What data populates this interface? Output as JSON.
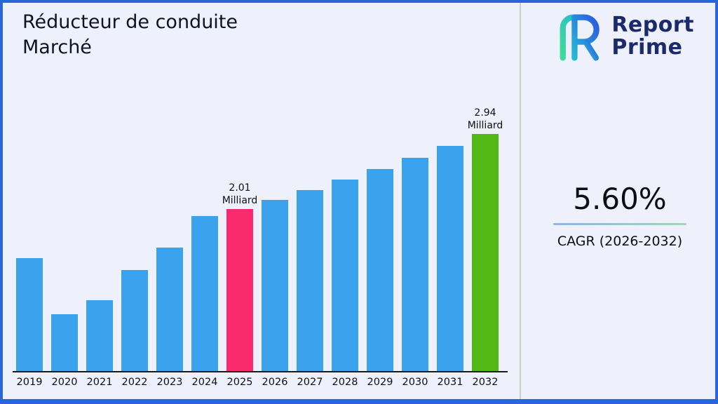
{
  "title": "Réducteur de conduite Marché",
  "logo": {
    "line1": "Report",
    "line2": "Prime"
  },
  "cagr": {
    "value": "5.60%",
    "label": "CAGR (2026-2032)"
  },
  "chart_data": {
    "type": "bar",
    "title": "Réducteur de conduite Marché",
    "categories": [
      "2019",
      "2020",
      "2021",
      "2022",
      "2023",
      "2024",
      "2025",
      "2026",
      "2027",
      "2028",
      "2029",
      "2030",
      "2031",
      "2032"
    ],
    "values": [
      1.4,
      0.7,
      0.88,
      1.25,
      1.53,
      1.92,
      2.01,
      2.12,
      2.24,
      2.37,
      2.5,
      2.64,
      2.79,
      2.94
    ],
    "unit": "Milliard",
    "xlabel": "",
    "ylabel": "",
    "ylim": [
      0,
      3.1
    ],
    "grid": false,
    "legend": "none",
    "colors": {
      "default": "#3BA3EE",
      "2025": "#FA2A6E",
      "2032": "#52B813"
    },
    "annotations": [
      {
        "category": "2025",
        "line1": "2.01",
        "line2": "Milliard"
      },
      {
        "category": "2032",
        "line1": "2.94",
        "line2": "Milliard"
      }
    ]
  }
}
